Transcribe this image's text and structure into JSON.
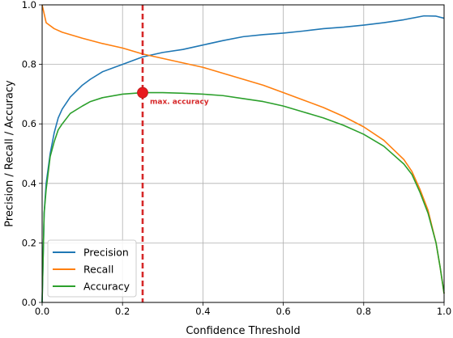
{
  "chart_data": {
    "type": "line",
    "title": "",
    "xlabel": "Confidence Threshold",
    "ylabel": "Precision / Recall / Accuracy",
    "xlim": [
      0.0,
      1.0
    ],
    "ylim": [
      0.0,
      1.0
    ],
    "xticks": [
      "0.0",
      "0.2",
      "0.4",
      "0.6",
      "0.8",
      "1.0"
    ],
    "yticks": [
      "0.0",
      "0.2",
      "0.4",
      "0.6",
      "0.8",
      "1.0"
    ],
    "grid": true,
    "legend_position": "lower-left",
    "series": [
      {
        "name": "Precision",
        "color": "#1f77b4",
        "points": [
          [
            0.0,
            0.0
          ],
          [
            0.005,
            0.3
          ],
          [
            0.01,
            0.4
          ],
          [
            0.02,
            0.5
          ],
          [
            0.03,
            0.57
          ],
          [
            0.04,
            0.62
          ],
          [
            0.05,
            0.65
          ],
          [
            0.07,
            0.69
          ],
          [
            0.1,
            0.73
          ],
          [
            0.12,
            0.75
          ],
          [
            0.15,
            0.775
          ],
          [
            0.18,
            0.79
          ],
          [
            0.2,
            0.8
          ],
          [
            0.25,
            0.825
          ],
          [
            0.3,
            0.84
          ],
          [
            0.35,
            0.85
          ],
          [
            0.4,
            0.865
          ],
          [
            0.45,
            0.88
          ],
          [
            0.5,
            0.893
          ],
          [
            0.55,
            0.9
          ],
          [
            0.6,
            0.905
          ],
          [
            0.65,
            0.912
          ],
          [
            0.7,
            0.92
          ],
          [
            0.75,
            0.925
          ],
          [
            0.8,
            0.932
          ],
          [
            0.85,
            0.94
          ],
          [
            0.9,
            0.95
          ],
          [
            0.95,
            0.963
          ],
          [
            0.98,
            0.962
          ],
          [
            1.0,
            0.955
          ]
        ]
      },
      {
        "name": "Recall",
        "color": "#ff7f0e",
        "points": [
          [
            0.0,
            1.0
          ],
          [
            0.01,
            0.94
          ],
          [
            0.03,
            0.92
          ],
          [
            0.05,
            0.908
          ],
          [
            0.1,
            0.888
          ],
          [
            0.15,
            0.87
          ],
          [
            0.2,
            0.855
          ],
          [
            0.25,
            0.835
          ],
          [
            0.3,
            0.82
          ],
          [
            0.35,
            0.805
          ],
          [
            0.4,
            0.79
          ],
          [
            0.45,
            0.77
          ],
          [
            0.5,
            0.75
          ],
          [
            0.55,
            0.73
          ],
          [
            0.6,
            0.705
          ],
          [
            0.65,
            0.68
          ],
          [
            0.7,
            0.655
          ],
          [
            0.75,
            0.625
          ],
          [
            0.8,
            0.59
          ],
          [
            0.85,
            0.545
          ],
          [
            0.9,
            0.48
          ],
          [
            0.92,
            0.44
          ],
          [
            0.94,
            0.38
          ],
          [
            0.96,
            0.31
          ],
          [
            0.98,
            0.2
          ],
          [
            0.99,
            0.12
          ],
          [
            1.0,
            0.03
          ]
        ]
      },
      {
        "name": "Accuracy",
        "color": "#2ca02c",
        "points": [
          [
            0.0,
            0.0
          ],
          [
            0.005,
            0.3
          ],
          [
            0.01,
            0.38
          ],
          [
            0.02,
            0.49
          ],
          [
            0.03,
            0.54
          ],
          [
            0.04,
            0.58
          ],
          [
            0.05,
            0.6
          ],
          [
            0.07,
            0.635
          ],
          [
            0.1,
            0.66
          ],
          [
            0.12,
            0.675
          ],
          [
            0.15,
            0.688
          ],
          [
            0.2,
            0.7
          ],
          [
            0.25,
            0.705
          ],
          [
            0.3,
            0.705
          ],
          [
            0.35,
            0.703
          ],
          [
            0.4,
            0.7
          ],
          [
            0.45,
            0.695
          ],
          [
            0.5,
            0.685
          ],
          [
            0.55,
            0.675
          ],
          [
            0.6,
            0.66
          ],
          [
            0.65,
            0.64
          ],
          [
            0.7,
            0.62
          ],
          [
            0.75,
            0.595
          ],
          [
            0.8,
            0.565
          ],
          [
            0.85,
            0.525
          ],
          [
            0.9,
            0.465
          ],
          [
            0.92,
            0.43
          ],
          [
            0.94,
            0.37
          ],
          [
            0.96,
            0.3
          ],
          [
            0.98,
            0.2
          ],
          [
            0.99,
            0.12
          ],
          [
            1.0,
            0.03
          ]
        ]
      }
    ],
    "annotations": [
      {
        "type": "vline",
        "x": 0.25,
        "color": "#d62728",
        "style": "dashed"
      },
      {
        "type": "point",
        "x": 0.25,
        "y": 0.705,
        "color": "#e8191d",
        "label": "max. accuracy",
        "label_color": "#d62728"
      }
    ]
  }
}
